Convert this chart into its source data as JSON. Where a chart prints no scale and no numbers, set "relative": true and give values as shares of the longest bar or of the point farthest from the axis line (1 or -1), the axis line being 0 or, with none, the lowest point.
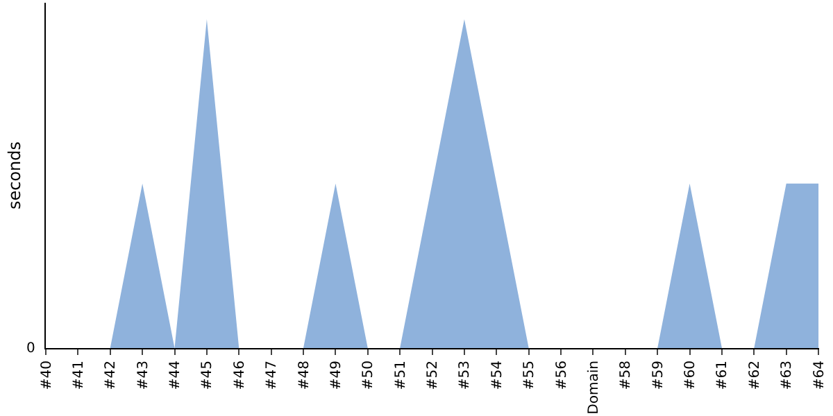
{
  "chart_data": {
    "type": "area",
    "ylabel": "seconds",
    "relative": true,
    "annotations": [
      "0"
    ],
    "categories": [
      "#40",
      "#41",
      "#42",
      "#43",
      "#44",
      "#45",
      "#46",
      "#47",
      "#48",
      "#49",
      "#50",
      "#51",
      "#52",
      "#53",
      "#54",
      "#55",
      "#56",
      "Domain",
      "#58",
      "#59",
      "#60",
      "#61",
      "#62",
      "#63",
      "#64"
    ],
    "series": [
      {
        "color": "#8fb2dc",
        "values": [
          0,
          0,
          0,
          0.5,
          0,
          1,
          0,
          0,
          0,
          0.5,
          0,
          0,
          0.5,
          1,
          0.5,
          0,
          0,
          0,
          0,
          0,
          0.5,
          0,
          0,
          0.5,
          0.5
        ]
      }
    ],
    "legend": false
  }
}
